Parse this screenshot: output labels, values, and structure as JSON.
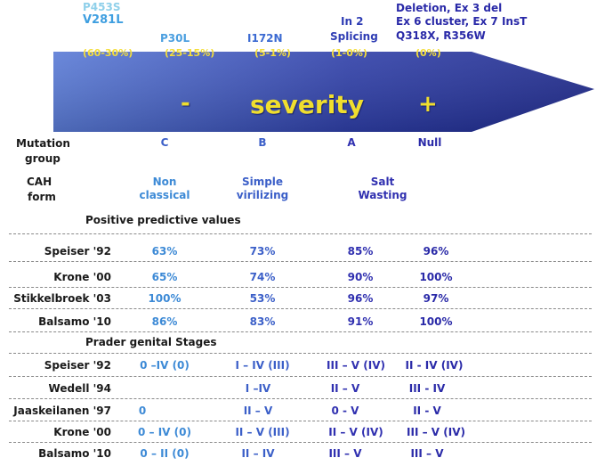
{
  "mutations": {
    "p453s": "P453S",
    "v281l": "V281L",
    "p30l": "P30L",
    "i172n": "I172N",
    "in2_line1": "In 2",
    "in2_line2": "Splicing",
    "null_line1": "Deletion, Ex 3 del",
    "null_line2": "Ex 6 cluster, Ex 7 InsT",
    "null_line3": "Q318X, R356W"
  },
  "ranges": [
    "(60-30%)",
    "(25-15%)",
    "(5-1%)",
    "(1-0%)",
    "(0%)"
  ],
  "severity": {
    "minus": "-",
    "label": "severity",
    "plus": "+"
  },
  "colors": {
    "arrow_dark": "#1f2a8c",
    "arrow_light": "#5a7bd6",
    "severity_text": "#f0de2e"
  },
  "mutation_group": {
    "label_line1": "Mutation",
    "label_line2": "group",
    "values": [
      "C",
      "B",
      "A",
      "Null"
    ]
  },
  "cah_form": {
    "label_line1": "CAH",
    "label_line2": "form",
    "nonclassical_1": "Non",
    "nonclassical_2": "classical",
    "simple_1": "Simple",
    "simple_2": "virilizing",
    "salt_1": "Salt",
    "salt_2": "Wasting"
  },
  "ppv": {
    "title": "Positive predictive values",
    "rows": [
      {
        "study": "Speiser '92",
        "values": [
          "63%",
          "73%",
          "85%",
          "96%"
        ]
      },
      {
        "study": "Krone '00",
        "values": [
          "65%",
          "74%",
          "90%",
          "100%"
        ]
      },
      {
        "study": "Stikkelbroek '03",
        "values": [
          "100%",
          "53%",
          "96%",
          "97%"
        ]
      },
      {
        "study": "Balsamo '10",
        "values": [
          "86%",
          "83%",
          "91%",
          "100%"
        ]
      }
    ]
  },
  "prader": {
    "title": "Prader genital Stages",
    "rows": [
      {
        "study": "Speiser '92",
        "values": [
          "0 –IV (0)",
          "I – IV (III)",
          "III – V (IV)",
          "II - IV (IV)"
        ]
      },
      {
        "study": "Wedell '94",
        "values": [
          "",
          "I –IV",
          "II – V",
          "III - IV"
        ]
      },
      {
        "study": "Jaaskeilanen '97",
        "values": [
          "0",
          "II – V",
          "0 - V",
          "II - V"
        ]
      },
      {
        "study": "Krone '00",
        "values": [
          "0 – IV (0)",
          "II – V (III)",
          "II – V (IV)",
          "III – V (IV)"
        ]
      },
      {
        "study": "Balsamo '10",
        "values": [
          "0 – II (0)",
          "II – IV",
          "III – V",
          "III – V"
        ]
      }
    ]
  }
}
